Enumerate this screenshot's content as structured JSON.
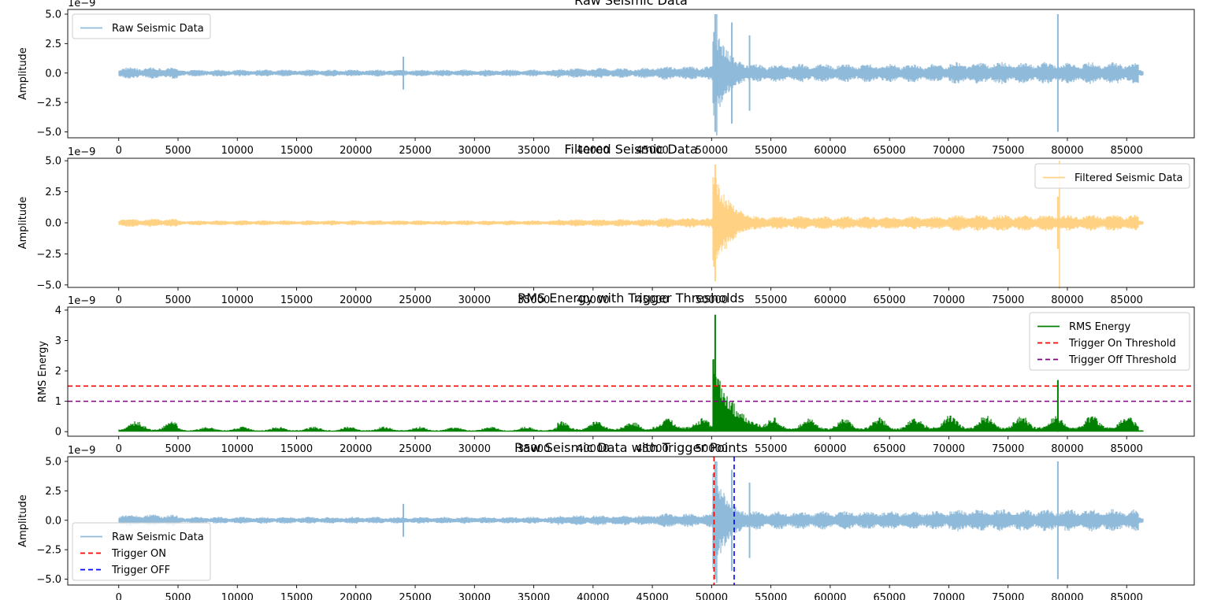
{
  "chart_data": [
    {
      "type": "line",
      "title": "Raw Seismic Data",
      "ylabel": "Amplitude",
      "offset_label": "1e−9",
      "xlim": [
        -4300,
        90700
      ],
      "ylim": [
        -5.5,
        5.4
      ],
      "x_ticks": [
        "0",
        "5000",
        "10000",
        "15000",
        "20000",
        "25000",
        "30000",
        "35000",
        "40000",
        "45000",
        "50000",
        "55000",
        "60000",
        "65000",
        "70000",
        "75000",
        "80000",
        "85000"
      ],
      "y_ticks": [
        "−5.0",
        "−2.5",
        "0.0",
        "2.5",
        "5.0"
      ],
      "legend_position": "upper left",
      "series": [
        {
          "name": "Raw Seismic Data",
          "color": "#8fbad9"
        }
      ],
      "events": [
        [
          24000,
          1.4
        ],
        [
          50300,
          5.0
        ],
        [
          51700,
          4.3
        ],
        [
          53200,
          3.2
        ],
        [
          79200,
          5.0
        ]
      ],
      "x_range": [
        0,
        86400
      ]
    },
    {
      "type": "line",
      "title": "Filtered Seismic Data",
      "ylabel": "Amplitude",
      "offset_label": "1e−9",
      "xlim": [
        -4300,
        90700
      ],
      "ylim": [
        -5.2,
        5.2
      ],
      "x_ticks": [
        "0",
        "5000",
        "10000",
        "15000",
        "20000",
        "25000",
        "30000",
        "35000",
        "40000",
        "45000",
        "50000",
        "55000",
        "60000",
        "65000",
        "70000",
        "75000",
        "80000",
        "85000"
      ],
      "y_ticks": [
        "−5.0",
        "−2.5",
        "0.0",
        "2.5",
        "5.0"
      ],
      "legend_position": "upper right",
      "series": [
        {
          "name": "Filtered Seismic Data",
          "color": "#ffd183"
        }
      ],
      "events": [
        [
          50300,
          4.7
        ],
        [
          79200,
          2.1
        ]
      ],
      "x_range": [
        0,
        86400
      ]
    },
    {
      "type": "line",
      "title": "RMS Energy with Trigger Thresholds",
      "ylabel": "RMS Energy",
      "offset_label": "1e−9",
      "xlim": [
        -4300,
        90700
      ],
      "ylim": [
        -0.15,
        4.1
      ],
      "x_ticks": [
        "0",
        "5000",
        "10000",
        "15000",
        "20000",
        "25000",
        "30000",
        "35000",
        "40000",
        "45000",
        "50000",
        "55000",
        "60000",
        "65000",
        "70000",
        "75000",
        "80000",
        "85000"
      ],
      "y_ticks": [
        "0",
        "1",
        "2",
        "3",
        "4"
      ],
      "legend_position": "upper right",
      "series": [
        {
          "name": "RMS Energy",
          "color": "#008000"
        },
        {
          "name": "Trigger On Threshold",
          "color": "#ff0000",
          "value": 1.5
        },
        {
          "name": "Trigger Off Threshold",
          "color": "#800080",
          "value": 1.0
        }
      ],
      "events": [
        [
          50300,
          3.85
        ],
        [
          79200,
          1.7
        ]
      ],
      "x_range": [
        0,
        86400
      ]
    },
    {
      "type": "line",
      "title": "Raw Seismic Data with Trigger Points",
      "ylabel": "Amplitude",
      "offset_label": "1e−9",
      "xlim": [
        -4300,
        90700
      ],
      "ylim": [
        -5.5,
        5.4
      ],
      "x_ticks": [
        "0",
        "5000",
        "10000",
        "15000",
        "20000",
        "25000",
        "30000",
        "35000",
        "40000",
        "45000",
        "50000",
        "55000",
        "60000",
        "65000",
        "70000",
        "75000",
        "80000",
        "85000"
      ],
      "y_ticks": [
        "−5.0",
        "−2.5",
        "0.0",
        "2.5",
        "5.0"
      ],
      "legend_position": "lower left",
      "series": [
        {
          "name": "Raw Seismic Data",
          "color": "#8fbad9"
        },
        {
          "name": "Trigger ON",
          "color": "#ff0000",
          "value": 50200
        },
        {
          "name": "Trigger OFF",
          "color": "#0000ff",
          "value": 51900
        }
      ],
      "events": [
        [
          24000,
          1.4
        ],
        [
          50300,
          5.0
        ],
        [
          51700,
          4.3
        ],
        [
          53200,
          3.2
        ],
        [
          79200,
          5.0
        ]
      ],
      "x_range": [
        0,
        86400
      ]
    }
  ]
}
